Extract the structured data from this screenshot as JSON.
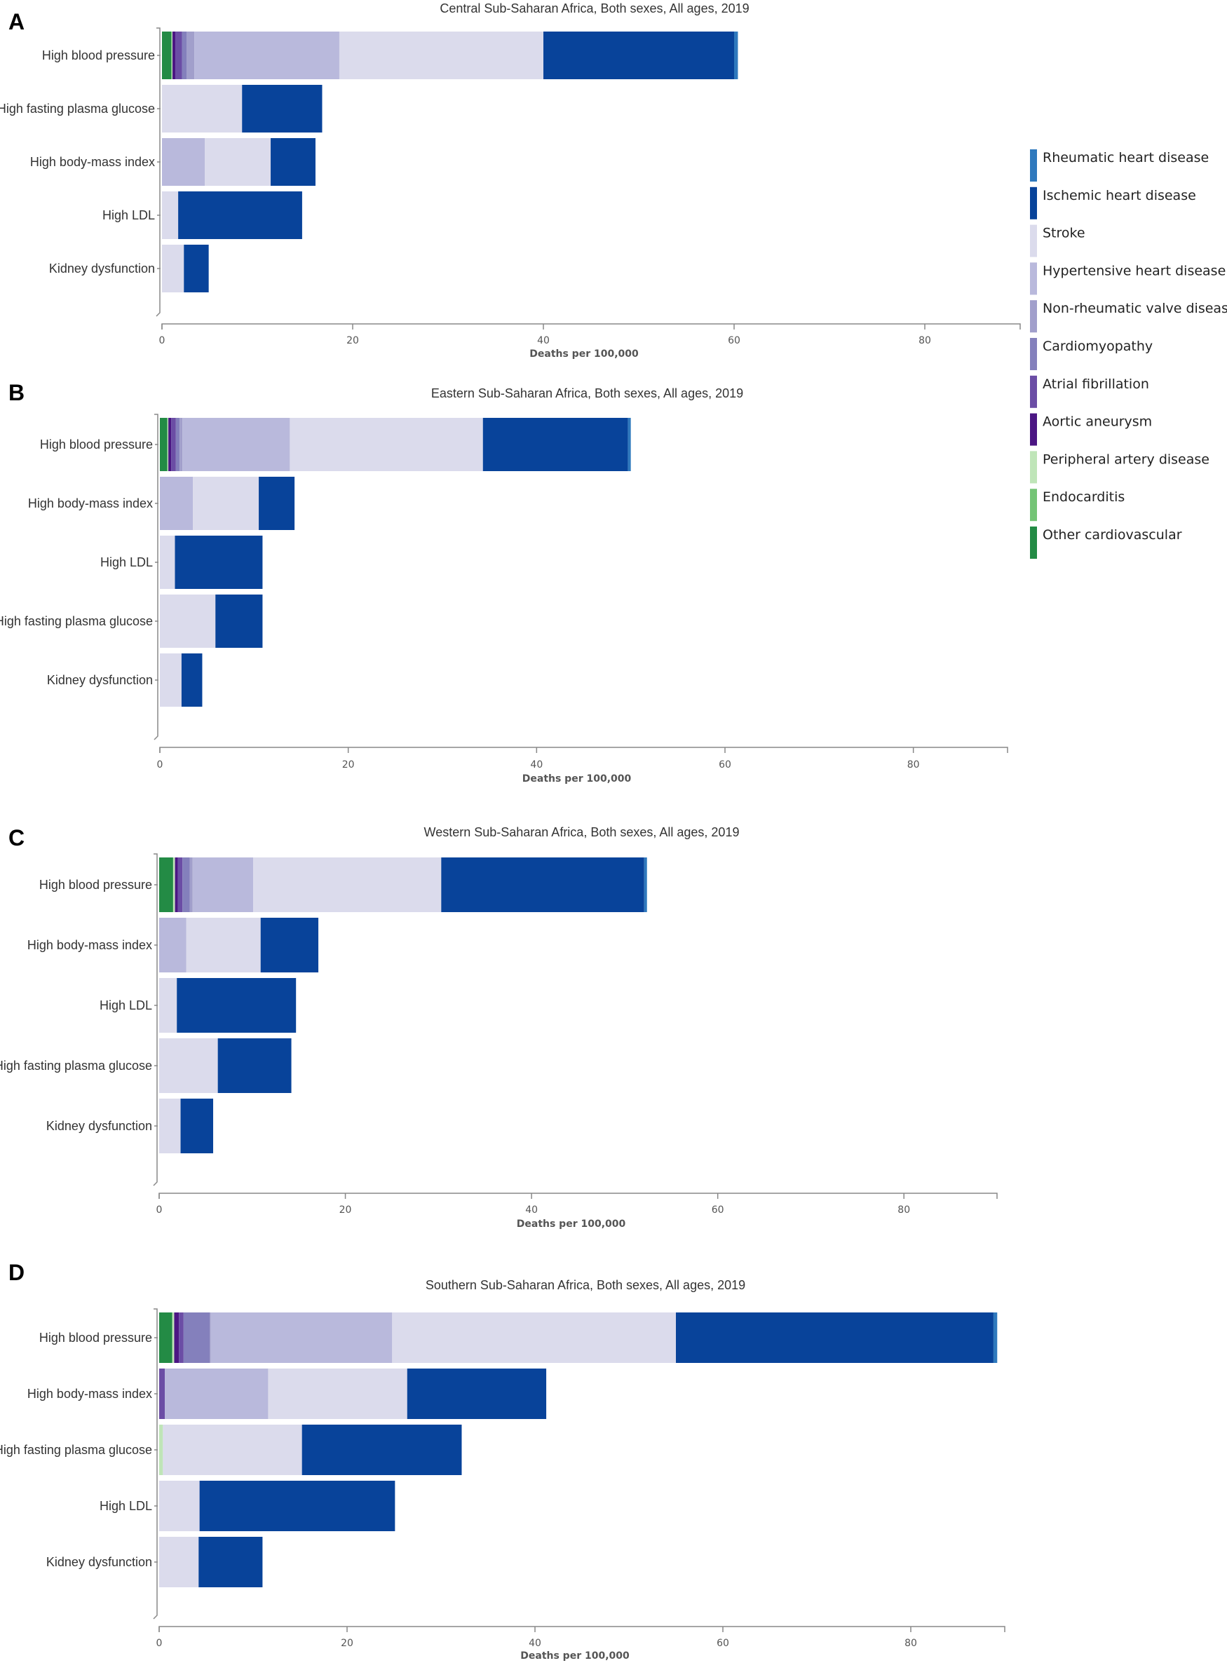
{
  "chart_data": [
    {
      "type": "bar",
      "orientation": "horizontal",
      "stacked": true,
      "panel": "A",
      "title": "Central Sub-Saharan Africa, Both sexes, All ages, 2019",
      "xlabel": "Deaths per 100,000",
      "ylabel": "",
      "xlim": [
        0,
        90
      ],
      "xticks": [
        0,
        20,
        40,
        60,
        80
      ],
      "categories": [
        "High blood pressure",
        "High fasting plasma glucose",
        "High body-mass index",
        "High LDL",
        "Kidney dysfunction"
      ],
      "series": [
        {
          "name": "Other cardiovascular",
          "values": [
            1.0,
            0,
            0,
            0,
            0
          ]
        },
        {
          "name": "Endocarditis",
          "values": [
            0,
            0,
            0,
            0,
            0
          ]
        },
        {
          "name": "Peripheral artery disease",
          "values": [
            0.1,
            0,
            0,
            0,
            0
          ]
        },
        {
          "name": "Aortic aneurysm",
          "values": [
            0.3,
            0,
            0,
            0,
            0
          ]
        },
        {
          "name": "Atrial fibrillation",
          "values": [
            0.7,
            0,
            0,
            0,
            0
          ]
        },
        {
          "name": "Cardiomyopathy",
          "values": [
            0.5,
            0,
            0,
            0,
            0
          ]
        },
        {
          "name": "Non-rheumatic valve disease",
          "values": [
            0.8,
            0,
            0,
            0,
            0
          ]
        },
        {
          "name": "Hypertensive heart disease",
          "values": [
            15.2,
            0,
            4.5,
            0,
            0
          ]
        },
        {
          "name": "Stroke",
          "values": [
            21.4,
            8.4,
            6.9,
            1.7,
            2.3
          ]
        },
        {
          "name": "Ischemic heart disease",
          "values": [
            20.0,
            8.4,
            4.7,
            13.0,
            2.6
          ]
        },
        {
          "name": "Rheumatic heart disease",
          "values": [
            0.4,
            0,
            0,
            0,
            0
          ]
        }
      ]
    },
    {
      "type": "bar",
      "orientation": "horizontal",
      "stacked": true,
      "panel": "B",
      "title": "Eastern Sub-Saharan Africa, Both sexes, All ages, 2019",
      "xlabel": "Deaths per 100,000",
      "ylabel": "",
      "xlim": [
        0,
        90
      ],
      "xticks": [
        0,
        20,
        40,
        60,
        80
      ],
      "categories": [
        "High blood pressure",
        "High body-mass index",
        "High LDL",
        "High fasting plasma glucose",
        "Kidney dysfunction"
      ],
      "series": [
        {
          "name": "Other cardiovascular",
          "values": [
            0.8,
            0,
            0,
            0,
            0
          ]
        },
        {
          "name": "Endocarditis",
          "values": [
            0,
            0,
            0,
            0,
            0
          ]
        },
        {
          "name": "Peripheral artery disease",
          "values": [
            0.1,
            0,
            0,
            0,
            0
          ]
        },
        {
          "name": "Aortic aneurysm",
          "values": [
            0.3,
            0,
            0,
            0,
            0
          ]
        },
        {
          "name": "Atrial fibrillation",
          "values": [
            0.5,
            0,
            0,
            0,
            0
          ]
        },
        {
          "name": "Cardiomyopathy",
          "values": [
            0.4,
            0,
            0,
            0,
            0
          ]
        },
        {
          "name": "Non-rheumatic valve disease",
          "values": [
            0.3,
            0,
            0,
            0,
            0
          ]
        },
        {
          "name": "Hypertensive heart disease",
          "values": [
            11.4,
            3.5,
            0,
            0,
            0
          ]
        },
        {
          "name": "Stroke",
          "values": [
            20.5,
            7.0,
            1.6,
            5.9,
            2.3
          ]
        },
        {
          "name": "Ischemic heart disease",
          "values": [
            15.4,
            3.8,
            9.3,
            5.0,
            2.2
          ]
        },
        {
          "name": "Rheumatic heart disease",
          "values": [
            0.3,
            0,
            0,
            0,
            0
          ]
        }
      ]
    },
    {
      "type": "bar",
      "orientation": "horizontal",
      "stacked": true,
      "panel": "C",
      "title": "Western Sub-Saharan Africa, Both sexes, All ages, 2019",
      "xlabel": "Deaths per 100,000",
      "ylabel": "",
      "xlim": [
        0,
        90
      ],
      "xticks": [
        0,
        20,
        40,
        60,
        80
      ],
      "categories": [
        "High blood pressure",
        "High body-mass index",
        "High LDL",
        "High fasting plasma glucose",
        "Kidney dysfunction"
      ],
      "series": [
        {
          "name": "Other cardiovascular",
          "values": [
            1.5,
            0,
            0,
            0,
            0
          ]
        },
        {
          "name": "Endocarditis",
          "values": [
            0,
            0,
            0,
            0,
            0
          ]
        },
        {
          "name": "Peripheral artery disease",
          "values": [
            0.2,
            0,
            0,
            0,
            0
          ]
        },
        {
          "name": "Aortic aneurysm",
          "values": [
            0.3,
            0,
            0,
            0,
            0
          ]
        },
        {
          "name": "Atrial fibrillation",
          "values": [
            0.5,
            0,
            0,
            0,
            0
          ]
        },
        {
          "name": "Cardiomyopathy",
          "values": [
            0.8,
            0,
            0,
            0,
            0
          ]
        },
        {
          "name": "Non-rheumatic valve disease",
          "values": [
            0.3,
            0,
            0,
            0,
            0
          ]
        },
        {
          "name": "Hypertensive heart disease",
          "values": [
            6.5,
            2.9,
            0,
            0,
            0
          ]
        },
        {
          "name": "Stroke",
          "values": [
            20.2,
            8.0,
            1.9,
            6.3,
            2.3
          ]
        },
        {
          "name": "Ischemic heart disease",
          "values": [
            21.8,
            6.2,
            12.8,
            7.9,
            3.5
          ]
        },
        {
          "name": "Rheumatic heart disease",
          "values": [
            0.3,
            0,
            0,
            0,
            0
          ]
        }
      ]
    },
    {
      "type": "bar",
      "orientation": "horizontal",
      "stacked": true,
      "panel": "D",
      "title": "Southern Sub-Saharan Africa, Both sexes, All ages, 2019",
      "xlabel": "Deaths per 100,000",
      "ylabel": "",
      "xlim": [
        0,
        90
      ],
      "xticks": [
        0,
        20,
        40,
        60,
        80
      ],
      "categories": [
        "High blood pressure",
        "High body-mass index",
        "High fasting plasma glucose",
        "High LDL",
        "Kidney dysfunction"
      ],
      "series": [
        {
          "name": "Other cardiovascular",
          "values": [
            1.4,
            0,
            0,
            0,
            0
          ]
        },
        {
          "name": "Endocarditis",
          "values": [
            0,
            0,
            0,
            0,
            0
          ]
        },
        {
          "name": "Peripheral artery disease",
          "values": [
            0.2,
            0,
            0.4,
            0,
            0
          ]
        },
        {
          "name": "Aortic aneurysm",
          "values": [
            0.5,
            0,
            0,
            0,
            0
          ]
        },
        {
          "name": "Atrial fibrillation",
          "values": [
            0.5,
            0.6,
            0,
            0,
            0
          ]
        },
        {
          "name": "Cardiomyopathy",
          "values": [
            2.8,
            0,
            0,
            0,
            0
          ]
        },
        {
          "name": "Non-rheumatic valve disease",
          "values": [
            0.1,
            0,
            0,
            0,
            0
          ]
        },
        {
          "name": "Hypertensive heart disease",
          "values": [
            19.3,
            11.0,
            0,
            0,
            0
          ]
        },
        {
          "name": "Stroke",
          "values": [
            30.2,
            14.8,
            14.8,
            4.3,
            4.2
          ]
        },
        {
          "name": "Ischemic heart disease",
          "values": [
            33.8,
            14.8,
            17.0,
            20.8,
            6.8
          ]
        },
        {
          "name": "Rheumatic heart disease",
          "values": [
            0.4,
            0,
            0,
            0,
            0
          ]
        }
      ]
    }
  ],
  "legend": {
    "items": [
      {
        "name": "Rheumatic heart disease",
        "color": "#2f79bd"
      },
      {
        "name": "Ischemic heart disease",
        "color": "#08439a"
      },
      {
        "name": "Stroke",
        "color": "#dbdbec"
      },
      {
        "name": "Hypertensive heart disease",
        "color": "#b9b9dc"
      },
      {
        "name": "Non-rheumatic valve disease",
        "color": "#a19fcb"
      },
      {
        "name": "Cardiomyopathy",
        "color": "#8480bc"
      },
      {
        "name": "Atrial fibrillation",
        "color": "#6b4da5"
      },
      {
        "name": "Aortic aneurysm",
        "color": "#4b1683"
      },
      {
        "name": "Peripheral artery disease",
        "color": "#bfe5b8"
      },
      {
        "name": "Endocarditis",
        "color": "#74c476"
      },
      {
        "name": "Other cardiovascular",
        "color": "#238b45"
      }
    ]
  }
}
